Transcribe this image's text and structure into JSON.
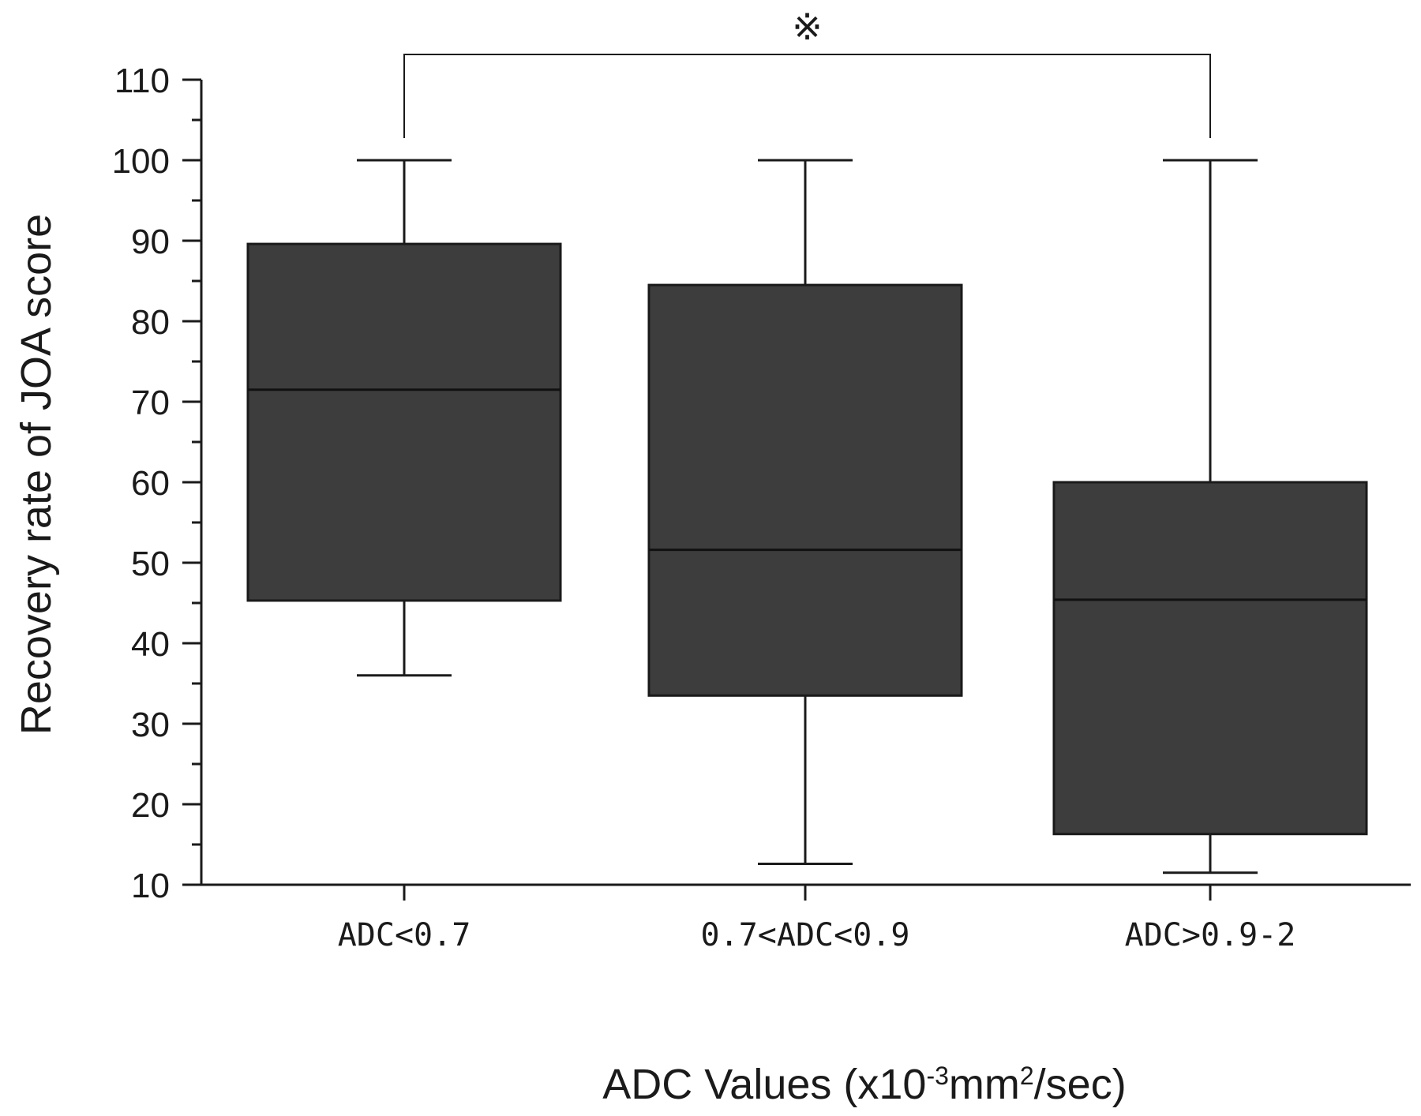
{
  "chart_data": {
    "type": "boxplot",
    "categories": [
      "ADC<0.7",
      "0.7<ADC<0.9",
      "ADC>0.9-2"
    ],
    "boxes": [
      {
        "min": 36,
        "q1": 45.3,
        "median": 71.5,
        "q3": 89.6,
        "max": 100
      },
      {
        "min": 12.6,
        "q1": 33.5,
        "median": 51.6,
        "q3": 84.5,
        "max": 100
      },
      {
        "min": 11.5,
        "q1": 16.3,
        "median": 45.4,
        "q3": 60,
        "max": 100
      }
    ],
    "ylabel": "Recovery rate of JOA score",
    "xlabel": {
      "base": "ADC Values (x10",
      "exp1": "-3",
      "mid": "mm",
      "exp2": "2",
      "tail": "/sec)"
    },
    "ylim": [
      10,
      110
    ],
    "yticks": [
      "10",
      "20",
      "30",
      "40",
      "50",
      "60",
      "70",
      "80",
      "90",
      "100",
      "110"
    ],
    "significance": {
      "from": 0,
      "to": 2,
      "marker": "※"
    },
    "grid": false,
    "colors": {
      "box_fill": "#3d3d3d",
      "line": "#1a1a1a"
    }
  }
}
